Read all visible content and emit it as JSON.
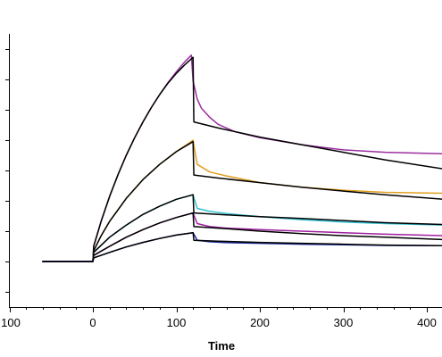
{
  "chart_data": {
    "type": "line",
    "title": "",
    "xlabel": "Time",
    "ylabel": "",
    "xlim": [
      -100,
      420
    ],
    "ylim": [
      -1.5,
      7.5
    ],
    "xticks": [
      -100,
      0,
      100,
      200,
      300,
      400
    ],
    "xtick_labels": [
      "100",
      "0",
      "100",
      "200",
      "300",
      "400"
    ],
    "yticks": [
      -1,
      0,
      1,
      2,
      3,
      4,
      5,
      6,
      7
    ],
    "ytick_labels": [
      "",
      "",
      "",
      "",
      "",
      "",
      "",
      "",
      ""
    ],
    "grid": false,
    "series": [
      {
        "color": "#9b2fa0",
        "x": [
          -60,
          0,
          1,
          10,
          20,
          30,
          40,
          50,
          60,
          70,
          80,
          90,
          100,
          110,
          118,
          120,
          125,
          130,
          140,
          150,
          170,
          200,
          250,
          300,
          350,
          420
        ],
        "y": [
          0.0,
          0.0,
          0.5,
          1.33,
          2.14,
          2.86,
          3.5,
          4.08,
          4.6,
          5.07,
          5.5,
          5.9,
          6.25,
          6.58,
          6.8,
          5.95,
          5.35,
          5.05,
          4.75,
          4.52,
          4.28,
          4.08,
          3.85,
          3.68,
          3.6,
          3.55
        ]
      },
      {
        "color": "#000000",
        "x": [
          -60,
          0,
          1,
          10,
          20,
          30,
          40,
          50,
          60,
          70,
          80,
          90,
          100,
          110,
          120,
          121,
          150,
          200,
          250,
          300,
          350,
          420
        ],
        "y": [
          0.0,
          0.0,
          0.5,
          1.33,
          2.14,
          2.86,
          3.5,
          4.08,
          4.6,
          5.07,
          5.5,
          5.88,
          6.2,
          6.48,
          6.73,
          4.6,
          4.4,
          4.1,
          3.85,
          3.6,
          3.35,
          3.05
        ]
      },
      {
        "color": "#e0a020",
        "x": [
          -60,
          0,
          1,
          10,
          20,
          40,
          60,
          80,
          100,
          115,
          120,
          125,
          140,
          160,
          200,
          250,
          300,
          350,
          420
        ],
        "y": [
          0.0,
          0.0,
          0.35,
          0.85,
          1.32,
          2.08,
          2.7,
          3.2,
          3.62,
          3.9,
          4.0,
          3.2,
          2.95,
          2.82,
          2.6,
          2.45,
          2.35,
          2.28,
          2.25
        ]
      },
      {
        "color": "#000000",
        "x": [
          -60,
          0,
          1,
          10,
          20,
          40,
          60,
          80,
          100,
          120,
          121,
          150,
          200,
          250,
          300,
          350,
          420
        ],
        "y": [
          0.0,
          0.0,
          0.35,
          0.85,
          1.32,
          2.08,
          2.7,
          3.2,
          3.62,
          3.95,
          2.85,
          2.75,
          2.6,
          2.45,
          2.32,
          2.2,
          2.05
        ]
      },
      {
        "color": "#30c0d0",
        "x": [
          -60,
          0,
          1,
          20,
          40,
          60,
          80,
          100,
          120,
          125,
          140,
          160,
          200,
          250,
          300,
          350,
          420
        ],
        "y": [
          0.0,
          0.0,
          0.3,
          0.8,
          1.2,
          1.55,
          1.82,
          2.05,
          2.2,
          1.75,
          1.65,
          1.58,
          1.48,
          1.38,
          1.3,
          1.25,
          1.2
        ]
      },
      {
        "color": "#000000",
        "x": [
          -60,
          0,
          1,
          20,
          40,
          60,
          80,
          100,
          120,
          121,
          150,
          200,
          250,
          300,
          350,
          420
        ],
        "y": [
          0.0,
          0.0,
          0.3,
          0.8,
          1.2,
          1.55,
          1.82,
          2.05,
          2.2,
          1.6,
          1.55,
          1.48,
          1.42,
          1.35,
          1.28,
          1.22
        ]
      },
      {
        "color": "#a020a0",
        "x": [
          -60,
          0,
          1,
          20,
          40,
          60,
          80,
          100,
          120,
          125,
          140,
          160,
          200,
          250,
          300,
          350,
          420
        ],
        "y": [
          0.0,
          0.0,
          0.2,
          0.5,
          0.8,
          1.05,
          1.27,
          1.45,
          1.6,
          1.25,
          1.15,
          1.1,
          1.05,
          1.0,
          0.95,
          0.9,
          0.85
        ]
      },
      {
        "color": "#000000",
        "x": [
          -60,
          0,
          1,
          20,
          40,
          60,
          80,
          100,
          120,
          121,
          150,
          200,
          250,
          300,
          350,
          420
        ],
        "y": [
          0.0,
          0.0,
          0.2,
          0.5,
          0.8,
          1.05,
          1.27,
          1.45,
          1.6,
          1.15,
          1.1,
          1.0,
          0.92,
          0.85,
          0.8,
          0.72
        ]
      },
      {
        "color": "#1a2a9a",
        "x": [
          -60,
          0,
          1,
          20,
          40,
          60,
          80,
          100,
          120,
          125,
          140,
          160,
          200,
          250,
          300,
          350,
          420
        ],
        "y": [
          0.0,
          0.0,
          0.12,
          0.3,
          0.48,
          0.63,
          0.76,
          0.87,
          0.95,
          0.7,
          0.65,
          0.62,
          0.6,
          0.57,
          0.55,
          0.53,
          0.52
        ]
      },
      {
        "color": "#000000",
        "x": [
          -60,
          0,
          1,
          20,
          40,
          60,
          80,
          100,
          120,
          121,
          150,
          200,
          250,
          300,
          350,
          420
        ],
        "y": [
          0.0,
          0.0,
          0.12,
          0.3,
          0.48,
          0.63,
          0.76,
          0.87,
          0.95,
          0.7,
          0.67,
          0.63,
          0.6,
          0.57,
          0.54,
          0.52
        ]
      }
    ]
  }
}
